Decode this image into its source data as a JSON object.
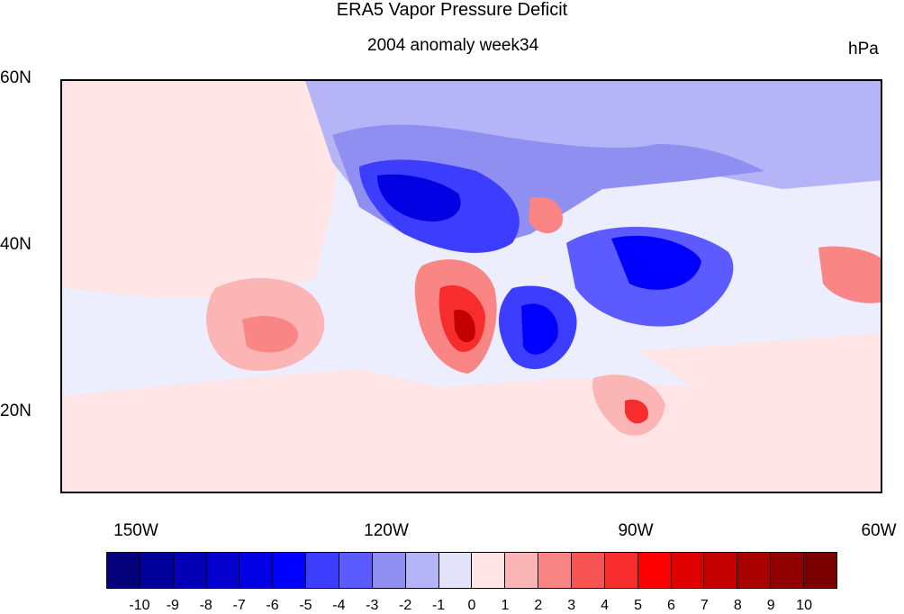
{
  "title": "ERA5 Vapor Pressure Deficit",
  "subtitle": "2004 anomaly week34",
  "units": "hPa",
  "map": {
    "lat_labels": [
      "60N",
      "40N",
      "20N"
    ],
    "lon_labels": [
      "150W",
      "120W",
      "90W",
      "60W"
    ]
  },
  "colorbar": {
    "labels": [
      "-10",
      "-9",
      "-8",
      "-7",
      "-6",
      "-5",
      "-4",
      "-3",
      "-2",
      "-1",
      "0",
      "1",
      "2",
      "3",
      "4",
      "5",
      "6",
      "7",
      "8",
      "9",
      "10"
    ],
    "colors": [
      "#03007a",
      "#02009b",
      "#0300b5",
      "#0400cd",
      "#0000e3",
      "#0000ff",
      "#3d3dff",
      "#5b5bff",
      "#8f8ff2",
      "#b4b4f6",
      "#e3e4fb",
      "#ffe5e5",
      "#fbb5b5",
      "#f98585",
      "#f75353",
      "#f72c2c",
      "#ff0000",
      "#df0000",
      "#c30000",
      "#a90000",
      "#900000",
      "#7c0000"
    ]
  }
}
